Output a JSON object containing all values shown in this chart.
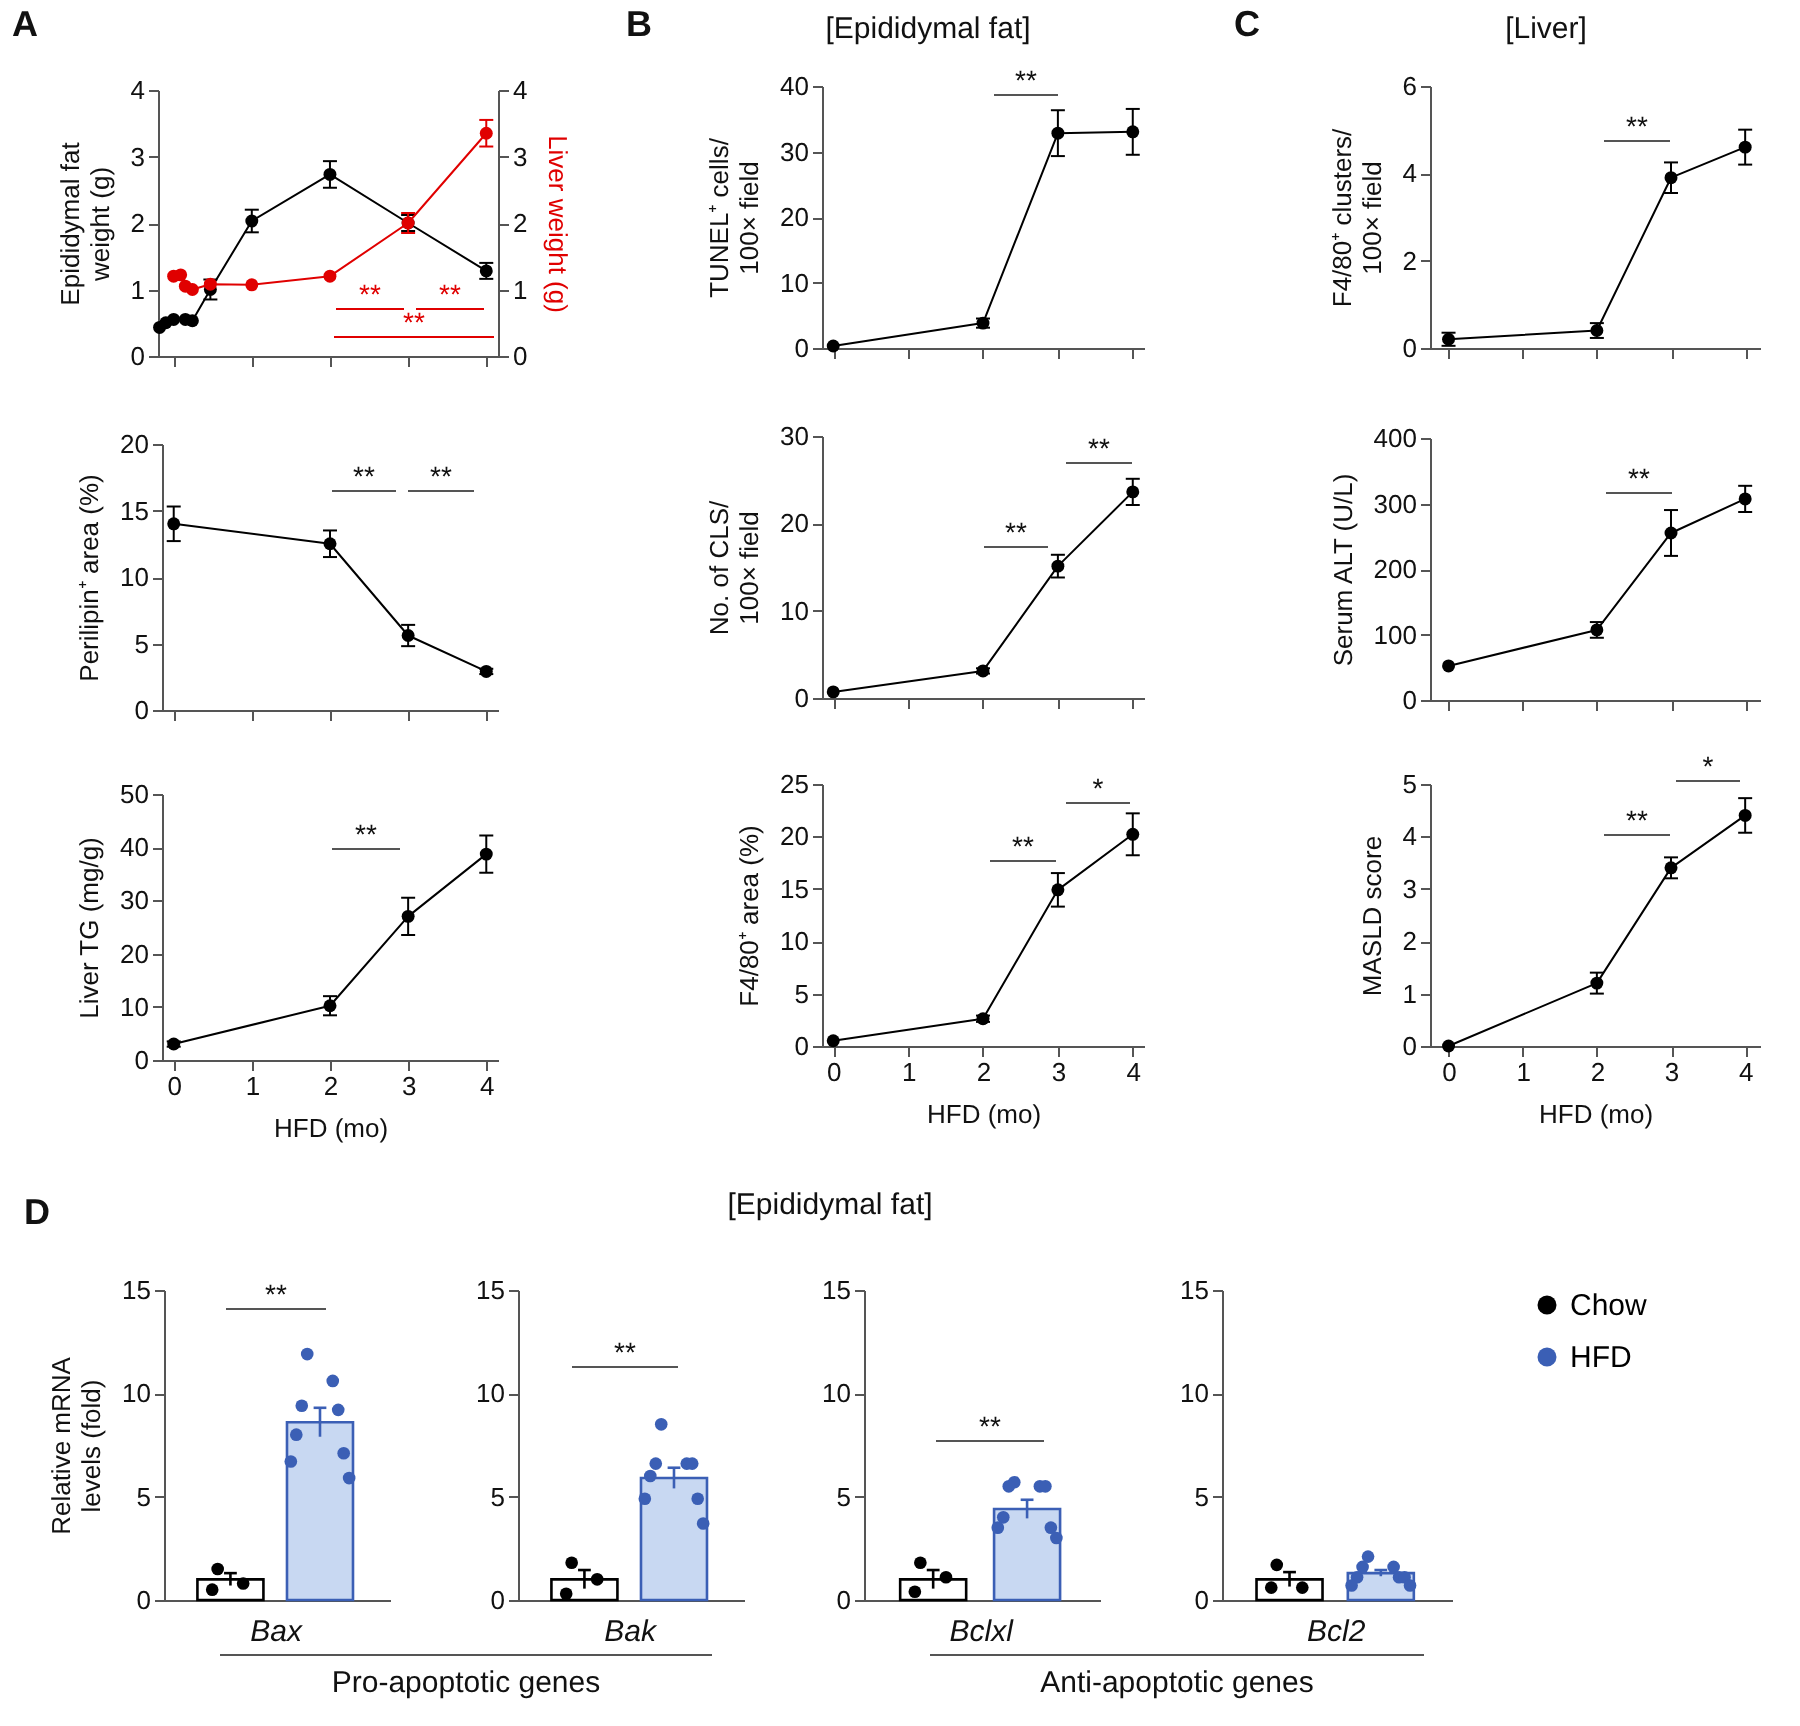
{
  "chart_data": [
    {
      "type": "line",
      "annotations": [
        "A",
        "**",
        "**",
        "**"
      ],
      "ylabel": "Epididymal fat weight (g)",
      "y2label": "Liver weight (g)",
      "xlim": [
        -0.2,
        4.15
      ],
      "xticks": [
        0,
        1,
        2,
        3,
        4
      ],
      "ylim": [
        0,
        4
      ],
      "yticks": [
        0,
        1,
        2,
        3,
        4
      ],
      "y2lim": [
        0,
        4
      ],
      "y2ticks": [
        0,
        1,
        2,
        3,
        4
      ],
      "tick_labels": "y",
      "marker": "circle",
      "line_style": "solid",
      "series": [
        {
          "color": "#000000",
          "x": [
            -0.18,
            -0.1,
            0,
            0.15,
            0.24,
            0.47,
            1,
            2,
            3,
            4
          ],
          "values": [
            0.43,
            0.5,
            0.55,
            0.55,
            0.53,
            1.0,
            2.03,
            2.73,
            2.0,
            1.28
          ],
          "errors": [
            null,
            null,
            null,
            null,
            null,
            0.15,
            0.17,
            0.2,
            0.12,
            0.12
          ]
        },
        {
          "color": "#e00000",
          "axis": "y2",
          "x": [
            0,
            0.09,
            0.15,
            0.24,
            0.47,
            1,
            2,
            3,
            4
          ],
          "values": [
            1.2,
            1.22,
            1.05,
            1.0,
            1.08,
            1.07,
            1.2,
            2.0,
            3.35
          ],
          "errors": [
            null,
            null,
            null,
            null,
            null,
            null,
            null,
            0.15,
            0.2
          ]
        }
      ]
    },
    {
      "type": "line",
      "annotations": [
        "**",
        "**"
      ],
      "ylabel": "Perilipin⁺ area (%)",
      "xlim": [
        -0.15,
        4.15
      ],
      "xticks": [
        0,
        1,
        2,
        3,
        4
      ],
      "ylim": [
        0,
        20
      ],
      "yticks": [
        0,
        5,
        10,
        15,
        20
      ],
      "tick_labels": "y",
      "marker": "circle",
      "line_style": "solid",
      "series": [
        {
          "color": "#000000",
          "x": [
            0,
            2,
            3,
            4
          ],
          "values": [
            14,
            12.5,
            5.6,
            2.9
          ],
          "errors": [
            1.3,
            1.0,
            0.8,
            0.2
          ]
        }
      ]
    },
    {
      "type": "line",
      "annotations": [
        "**"
      ],
      "xlabel": "HFD (mo)",
      "ylabel": "Liver TG (mg/g)",
      "xlim": [
        -0.15,
        4.15
      ],
      "xticks": [
        0,
        1,
        2,
        3,
        4
      ],
      "ylim": [
        0,
        50
      ],
      "yticks": [
        0,
        10,
        20,
        30,
        40,
        50
      ],
      "marker": "circle",
      "line_style": "solid",
      "series": [
        {
          "color": "#000000",
          "x": [
            0,
            2,
            3,
            4
          ],
          "values": [
            3,
            10.2,
            27,
            38.7
          ],
          "errors": [
            0.5,
            1.8,
            3.5,
            3.5
          ]
        }
      ]
    },
    {
      "type": "line",
      "title": "[Epididymal fat]",
      "annotations": [
        "B",
        "**"
      ],
      "ylabel": "TUNEL⁺ cells/ 100× field",
      "xlim": [
        -0.15,
        4.15
      ],
      "xticks": [
        0,
        1,
        2,
        3,
        4
      ],
      "ylim": [
        0,
        40
      ],
      "yticks": [
        0,
        10,
        20,
        30,
        40
      ],
      "tick_labels": "y",
      "marker": "circle",
      "line_style": "solid",
      "series": [
        {
          "color": "#000000",
          "x": [
            0,
            2,
            3,
            4
          ],
          "values": [
            0.3,
            3.8,
            32.8,
            33
          ],
          "errors": [
            null,
            0.7,
            3.5,
            3.5
          ]
        }
      ]
    },
    {
      "type": "line",
      "annotations": [
        "**",
        "**"
      ],
      "ylabel": "No. of CLS/ 100× field",
      "xlim": [
        -0.15,
        4.15
      ],
      "xticks": [
        0,
        1,
        2,
        3,
        4
      ],
      "ylim": [
        0,
        30
      ],
      "yticks": [
        0,
        10,
        20,
        30
      ],
      "tick_labels": "y",
      "marker": "circle",
      "line_style": "solid",
      "series": [
        {
          "color": "#000000",
          "x": [
            0,
            2,
            3,
            4
          ],
          "values": [
            0.7,
            3.1,
            15.1,
            23.6
          ],
          "errors": [
            null,
            0.3,
            1.3,
            1.5
          ]
        }
      ]
    },
    {
      "type": "line",
      "annotations": [
        "**",
        "*"
      ],
      "xlabel": "HFD (mo)",
      "ylabel": "F4/80⁺ area (%)",
      "xlim": [
        -0.15,
        4.15
      ],
      "xticks": [
        0,
        1,
        2,
        3,
        4
      ],
      "ylim": [
        0,
        25
      ],
      "yticks": [
        0,
        5,
        10,
        15,
        20,
        25
      ],
      "marker": "circle",
      "line_style": "solid",
      "series": [
        {
          "color": "#000000",
          "x": [
            0,
            2,
            3,
            4
          ],
          "values": [
            0.5,
            2.6,
            14.9,
            20.2
          ],
          "errors": [
            null,
            0.3,
            1.6,
            2.0
          ]
        }
      ]
    },
    {
      "type": "line",
      "title": "[Liver]",
      "annotations": [
        "C",
        "**"
      ],
      "ylabel": "F4/80⁺ clusters/ 100× field",
      "xlim": [
        -0.25,
        4.2
      ],
      "xticks": [
        0,
        1,
        2,
        3,
        4
      ],
      "ylim": [
        0,
        6
      ],
      "yticks": [
        0,
        2,
        4,
        6
      ],
      "tick_labels": "y",
      "marker": "circle",
      "line_style": "solid",
      "series": [
        {
          "color": "#000000",
          "x": [
            0,
            2,
            3,
            4
          ],
          "values": [
            0.2,
            0.4,
            3.9,
            4.6
          ],
          "errors": [
            0.15,
            0.17,
            0.35,
            0.4
          ]
        }
      ]
    },
    {
      "type": "line",
      "annotations": [
        "**"
      ],
      "ylabel": "Serum ALT (U/L)",
      "xlim": [
        -0.25,
        4.2
      ],
      "xticks": [
        0,
        1,
        2,
        3,
        4
      ],
      "ylim": [
        0,
        400
      ],
      "yticks": [
        0,
        100,
        200,
        300,
        400
      ],
      "tick_labels": "y",
      "marker": "circle",
      "line_style": "solid",
      "series": [
        {
          "color": "#000000",
          "x": [
            0,
            2,
            3,
            4
          ],
          "values": [
            52,
            107,
            255,
            307
          ],
          "errors": [
            null,
            12,
            35,
            20
          ]
        }
      ]
    },
    {
      "type": "line",
      "annotations": [
        "**",
        "*"
      ],
      "xlabel": "HFD (mo)",
      "ylabel": "MASLD score",
      "xlim": [
        -0.25,
        4.2
      ],
      "xticks": [
        0,
        1,
        2,
        3,
        4
      ],
      "ylim": [
        0,
        5
      ],
      "yticks": [
        0,
        1,
        2,
        3,
        4,
        5
      ],
      "marker": "circle",
      "line_style": "solid",
      "series": [
        {
          "color": "#000000",
          "x": [
            0,
            2,
            3,
            4
          ],
          "values": [
            0,
            1.2,
            3.4,
            4.4
          ],
          "errors": [
            null,
            0.2,
            0.2,
            0.33
          ]
        }
      ]
    },
    {
      "type": "bar",
      "annotations": [
        "[Epididymal fat]",
        "D",
        "**",
        "Pro-apoptotic genes"
      ],
      "ylabel": "Relative mRNA levels (fold)",
      "categories": [
        "Bax"
      ],
      "ylim": [
        0,
        15
      ],
      "yticks": [
        0,
        5,
        10,
        15
      ],
      "marker": "circle",
      "series": [
        {
          "type": "bar",
          "color": "#ffffff",
          "values": [
            1.0
          ],
          "errors": [
            0.3
          ]
        },
        {
          "type": "bar",
          "color": "#c8d8f2",
          "values": [
            8.6
          ],
          "errors": [
            0.7
          ]
        },
        {
          "type": "scatter",
          "color": "#000000",
          "x": [
            "Bax",
            "Bax",
            "Bax"
          ],
          "values": [
            1.5,
            0.8,
            0.5
          ]
        },
        {
          "type": "scatter",
          "color": "#3b5fb5",
          "x": [
            "Bax",
            "Bax",
            "Bax",
            "Bax",
            "Bax",
            "Bax",
            "Bax",
            "Bax"
          ],
          "values": [
            11.9,
            10.6,
            9.4,
            9.2,
            8.0,
            7.1,
            6.7,
            5.9
          ]
        }
      ]
    },
    {
      "type": "bar",
      "annotations": [
        "**"
      ],
      "categories": [
        "Bak"
      ],
      "ylim": [
        0,
        15
      ],
      "yticks": [
        0,
        5,
        10,
        15
      ],
      "marker": "circle",
      "series": [
        {
          "type": "bar",
          "color": "#ffffff",
          "values": [
            1.0
          ],
          "errors": [
            0.45
          ]
        },
        {
          "type": "bar",
          "color": "#c8d8f2",
          "values": [
            5.9
          ],
          "errors": [
            0.5
          ]
        },
        {
          "type": "scatter",
          "color": "#000000",
          "x": [
            "Bak",
            "Bak",
            "Bak"
          ],
          "values": [
            1.8,
            1.0,
            0.3
          ]
        },
        {
          "type": "scatter",
          "color": "#3b5fb5",
          "x": [
            "Bak",
            "Bak",
            "Bak",
            "Bak",
            "Bak",
            "Bak",
            "Bak",
            "Bak"
          ],
          "values": [
            8.5,
            6.6,
            6.6,
            6.6,
            6.0,
            4.9,
            4.9,
            3.7
          ]
        }
      ]
    },
    {
      "type": "bar",
      "annotations": [
        "**",
        "Anti-apoptotic genes"
      ],
      "categories": [
        "Bclxl"
      ],
      "ylim": [
        0,
        15
      ],
      "yticks": [
        0,
        5,
        10,
        15
      ],
      "marker": "circle",
      "series": [
        {
          "type": "bar",
          "color": "#ffffff",
          "values": [
            1.0
          ],
          "errors": [
            0.45
          ]
        },
        {
          "type": "bar",
          "color": "#c8d8f2",
          "values": [
            4.4
          ],
          "errors": [
            0.45
          ]
        },
        {
          "type": "scatter",
          "color": "#000000",
          "x": [
            "Bclxl",
            "Bclxl",
            "Bclxl"
          ],
          "values": [
            1.8,
            1.1,
            0.4
          ]
        },
        {
          "type": "scatter",
          "color": "#3b5fb5",
          "x": [
            "Bclxl",
            "Bclxl",
            "Bclxl",
            "Bclxl",
            "Bclxl",
            "Bclxl",
            "Bclxl",
            "Bclxl"
          ],
          "values": [
            5.7,
            5.5,
            5.5,
            5.5,
            4.0,
            3.5,
            3.5,
            3.0
          ]
        }
      ]
    },
    {
      "type": "bar",
      "categories": [
        "Bcl2"
      ],
      "ylim": [
        0,
        15
      ],
      "yticks": [
        0,
        5,
        10,
        15
      ],
      "marker": "circle",
      "legend": "right",
      "series": [
        {
          "type": "bar",
          "color": "#ffffff",
          "values": [
            1.0
          ],
          "errors": [
            0.35
          ]
        },
        {
          "type": "bar",
          "color": "#c8d8f2",
          "values": [
            1.3
          ],
          "errors": [
            0.15
          ]
        },
        {
          "type": "scatter",
          "name": "Chow",
          "color": "#000000",
          "x": [
            "Bcl2",
            "Bcl2",
            "Bcl2"
          ],
          "values": [
            1.7,
            0.6,
            0.6
          ]
        },
        {
          "type": "scatter",
          "name": "HFD",
          "color": "#3b5fb5",
          "x": [
            "Bcl2",
            "Bcl2",
            "Bcl2",
            "Bcl2",
            "Bcl2",
            "Bcl2",
            "Bcl2",
            "Bcl2"
          ],
          "values": [
            2.1,
            1.6,
            1.6,
            1.1,
            1.1,
            1.1,
            0.7,
            0.7
          ]
        }
      ]
    }
  ]
}
